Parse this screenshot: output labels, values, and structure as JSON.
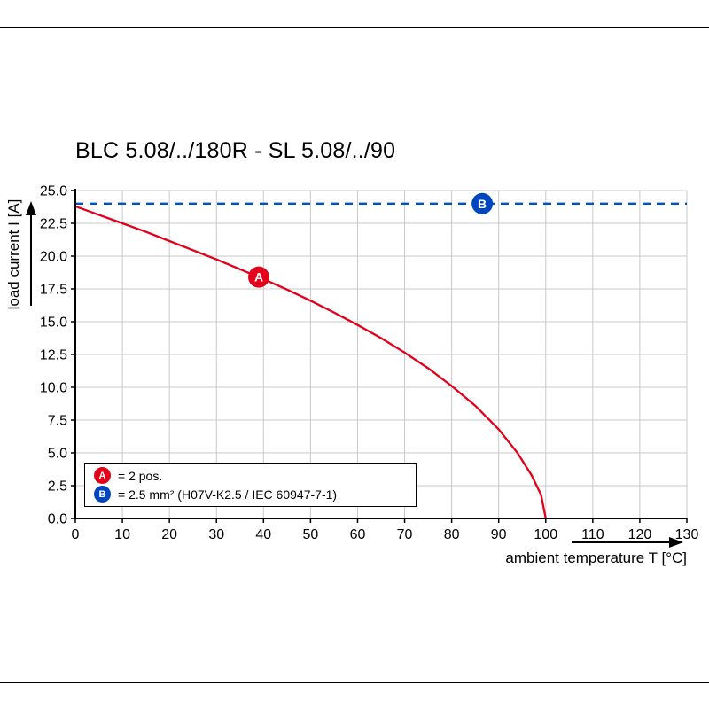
{
  "page": {
    "frame": "black rule top and bottom"
  },
  "chart_data": {
    "type": "line",
    "title": "BLC 5.08/../180R - SL 5.08/../90",
    "xlabel": "ambient temperature T [°C]",
    "ylabel": "load current I [A]",
    "xlim": [
      0,
      130
    ],
    "ylim": [
      0,
      25
    ],
    "x_ticks": [
      0,
      10,
      20,
      30,
      40,
      50,
      60,
      70,
      80,
      90,
      100,
      110,
      120,
      130
    ],
    "x_tick_labels": [
      "0",
      "10",
      "20",
      "30",
      "40",
      "50",
      "60",
      "70",
      "80",
      "90",
      "100",
      "110",
      "120",
      "130"
    ],
    "y_ticks": [
      0,
      2.5,
      5,
      7.5,
      10,
      12.5,
      15,
      17.5,
      20,
      22.5,
      25
    ],
    "y_tick_labels": [
      "0.0",
      "2.5",
      "5.0",
      "7.5",
      "10.0",
      "12.5",
      "15.0",
      "17.5",
      "20.0",
      "22.5",
      "25.0"
    ],
    "grid": true,
    "grid_color": "#c9c9c9",
    "series": [
      {
        "name": "A",
        "style": "solid",
        "color": "#e2001a",
        "points": [
          [
            0,
            23.8
          ],
          [
            5,
            23.15
          ],
          [
            10,
            22.5
          ],
          [
            15,
            21.85
          ],
          [
            20,
            21.15
          ],
          [
            25,
            20.45
          ],
          [
            30,
            19.75
          ],
          [
            35,
            19.0
          ],
          [
            40,
            18.25
          ],
          [
            45,
            17.45
          ],
          [
            50,
            16.6
          ],
          [
            55,
            15.7
          ],
          [
            60,
            14.75
          ],
          [
            65,
            13.75
          ],
          [
            70,
            12.65
          ],
          [
            75,
            11.45
          ],
          [
            80,
            10.1
          ],
          [
            85,
            8.6
          ],
          [
            90,
            6.8
          ],
          [
            94,
            5.0
          ],
          [
            97,
            3.3
          ],
          [
            99,
            1.8
          ],
          [
            100,
            0
          ]
        ]
      },
      {
        "name": "B",
        "style": "dashed",
        "color": "#0050c8",
        "points": [
          [
            0,
            24
          ],
          [
            130,
            24
          ]
        ]
      }
    ],
    "markers": [
      {
        "label": "A",
        "x": 39,
        "y": 18.4,
        "color": "#e2001a"
      },
      {
        "label": "B",
        "x": 86.5,
        "y": 24,
        "color": "#0046be"
      }
    ],
    "legend": [
      {
        "label": "A",
        "color": "#e2001a",
        "text": "= 2 pos."
      },
      {
        "label": "B",
        "color": "#0046be",
        "text": "= 2.5 mm² (H07V-K2.5 / IEC 60947-7-1)"
      }
    ],
    "legend_position": "lower-left"
  }
}
